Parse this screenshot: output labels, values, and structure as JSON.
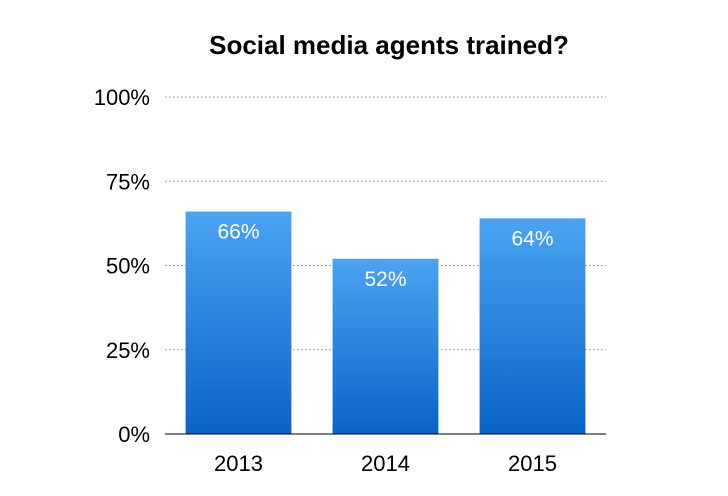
{
  "chart_data": {
    "type": "bar",
    "title": "Social media agents trained?",
    "xlabel": "",
    "ylabel": "",
    "categories": [
      "2013",
      "2014",
      "2015"
    ],
    "values": [
      66,
      52,
      64
    ],
    "data_labels": [
      "66%",
      "52%",
      "64%"
    ],
    "ylim": [
      0,
      100
    ],
    "yticks": [
      0,
      25,
      50,
      75,
      100
    ],
    "ytick_labels": [
      "0%",
      "25%",
      "50%",
      "75%",
      "100%"
    ],
    "grid": true,
    "legend": "none",
    "bar_color_top": "#4ba3f2",
    "bar_color_bottom": "#0a64c8"
  }
}
